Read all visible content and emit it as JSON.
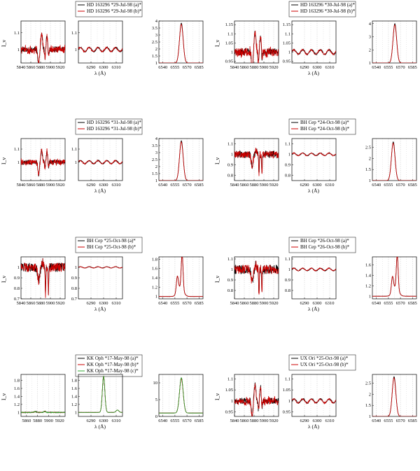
{
  "colors": {
    "a": "#000000",
    "b": "#cc0000",
    "c": "#33aa33",
    "grid": "#b8b8b8"
  },
  "chart_data": [
    {
      "type": "line",
      "title": "",
      "ylabel": "I_ν",
      "xlabel": "λ (Å)",
      "legend": [
        "HD 163296 *29-Jul-98 (a)*",
        "HD 163296 *29-Jul-98 (b)*"
      ],
      "panels": [
        {
          "xlim": [
            5840,
            5930
          ],
          "ylim": [
            0.92,
            1.17
          ],
          "xticks": [
            5840,
            5860,
            5880,
            5900,
            5920
          ],
          "yticks": [
            1,
            1.1
          ],
          "kind": "naD",
          "amp": 0.1
        },
        {
          "xlim": [
            6280,
            6315
          ],
          "ylim": [
            0.92,
            1.17
          ],
          "xticks": [
            6290,
            6300,
            6310
          ],
          "yticks": [
            1,
            1.1
          ],
          "kind": "wave",
          "amp": 0.02
        },
        {
          "xlim": [
            6535,
            6590
          ],
          "ylim": [
            1,
            4
          ],
          "xticks": [
            6540,
            6555,
            6570,
            6585
          ],
          "yticks": [
            1,
            1.5,
            2,
            2.5,
            3,
            3.5,
            4
          ],
          "kind": "ha",
          "peak": 3.85,
          "center": 6563
        }
      ]
    },
    {
      "type": "line",
      "title": "",
      "ylabel": "I_ν",
      "xlabel": "λ (Å)",
      "legend": [
        "HD 163296 *30-Jul-98 (a)*",
        "HD 163296 *30-Jul-98 (b)*"
      ],
      "panels": [
        {
          "xlim": [
            5840,
            5930
          ],
          "ylim": [
            0.94,
            1.17
          ],
          "xticks": [
            5840,
            5860,
            5880,
            5900,
            5920
          ],
          "yticks": [
            0.95,
            1,
            1.05,
            1.1,
            1.15
          ],
          "kind": "naD",
          "amp": 0.12
        },
        {
          "xlim": [
            6280,
            6315
          ],
          "ylim": [
            0.94,
            1.17
          ],
          "xticks": [
            6290,
            6300,
            6310
          ],
          "yticks": [
            0.95,
            1,
            1.05,
            1.1,
            1.15
          ],
          "kind": "wave",
          "amp": 0.02
        },
        {
          "xlim": [
            6535,
            6590
          ],
          "ylim": [
            1,
            4.2
          ],
          "xticks": [
            6540,
            6555,
            6570,
            6585
          ],
          "yticks": [
            1,
            2,
            3,
            4
          ],
          "kind": "ha",
          "peak": 4.0,
          "center": 6563
        }
      ]
    },
    {
      "type": "line",
      "title": "",
      "ylabel": "I_ν",
      "xlabel": "λ (Å)",
      "legend": [
        "HD 163296 *31-Jul-98 (a)*",
        "HD 163296 *31-Jul-98 (b)*"
      ],
      "panels": [
        {
          "xlim": [
            5840,
            5930
          ],
          "ylim": [
            0.86,
            1.18
          ],
          "xticks": [
            5840,
            5860,
            5880,
            5900,
            5920
          ],
          "yticks": [
            1,
            1.1
          ],
          "kind": "naD",
          "amp": 0.1
        },
        {
          "xlim": [
            6280,
            6315
          ],
          "ylim": [
            0.86,
            1.18
          ],
          "xticks": [
            6290,
            6300,
            6310
          ],
          "yticks": [
            1,
            1.1
          ],
          "kind": "wave",
          "amp": 0.02
        },
        {
          "xlim": [
            6535,
            6590
          ],
          "ylim": [
            1,
            4
          ],
          "xticks": [
            6540,
            6555,
            6570,
            6585
          ],
          "yticks": [
            1,
            1.5,
            2,
            2.5,
            3,
            3.5,
            4
          ],
          "kind": "ha",
          "peak": 3.85,
          "center": 6563
        }
      ]
    },
    {
      "type": "line",
      "title": "",
      "ylabel": "I_ν",
      "xlabel": "λ (Å)",
      "legend": [
        "BH Cep *24-Oct-98 (a)*",
        "BH Cep *24-Oct-98 (b)*"
      ],
      "panels": [
        {
          "xlim": [
            5840,
            5930
          ],
          "ylim": [
            0.75,
            1.15
          ],
          "xticks": [
            5840,
            5860,
            5880,
            5900,
            5920
          ],
          "yticks": [
            0.8,
            0.9,
            1,
            1.1
          ],
          "kind": "naDabs",
          "amp": 0.2
        },
        {
          "xlim": [
            6280,
            6315
          ],
          "ylim": [
            0.75,
            1.15
          ],
          "xticks": [
            6290,
            6300,
            6310
          ],
          "yticks": [
            0.8,
            0.9,
            1,
            1.1
          ],
          "kind": "wave",
          "amp": 0.02
        },
        {
          "xlim": [
            6535,
            6590
          ],
          "ylim": [
            1,
            2.9
          ],
          "xticks": [
            6540,
            6555,
            6570,
            6585
          ],
          "yticks": [
            1,
            1.5,
            2,
            2.5
          ],
          "kind": "ha",
          "peak": 2.75,
          "center": 6561
        }
      ]
    },
    {
      "type": "line",
      "title": "",
      "ylabel": "I_ν",
      "xlabel": "λ (Å)",
      "legend": [
        "BH Cep *25-Oct-98 (a)*",
        "BH Cep *25-Oct-98 (b)*"
      ],
      "panels": [
        {
          "xlim": [
            5840,
            5930
          ],
          "ylim": [
            0.7,
            1.1
          ],
          "xticks": [
            5840,
            5860,
            5880,
            5900,
            5920
          ],
          "yticks": [
            0.7,
            0.8,
            0.9,
            1
          ],
          "kind": "naDabs",
          "amp": 0.25
        },
        {
          "xlim": [
            6280,
            6315
          ],
          "ylim": [
            0.7,
            1.1
          ],
          "xticks": [
            6290,
            6300,
            6310
          ],
          "yticks": [
            0.7,
            0.8,
            0.9,
            1
          ],
          "kind": "wave",
          "amp": 0.01
        },
        {
          "xlim": [
            6535,
            6590
          ],
          "ylim": [
            0.95,
            1.85
          ],
          "xticks": [
            6540,
            6555,
            6570,
            6585
          ],
          "yticks": [
            1,
            1.2,
            1.4,
            1.6,
            1.8
          ],
          "kind": "ha2",
          "peak": 1.75,
          "center": 6562
        }
      ]
    },
    {
      "type": "line",
      "title": "",
      "ylabel": "I_ν",
      "xlabel": "λ (Å)",
      "legend": [
        "BH Cep *26-Oct-98 (a)*",
        "BH Cep *26-Oct-98 (b)*"
      ],
      "panels": [
        {
          "xlim": [
            5840,
            5930
          ],
          "ylim": [
            0.72,
            1.12
          ],
          "xticks": [
            5840,
            5860,
            5880,
            5900,
            5920
          ],
          "yticks": [
            0.8,
            0.9,
            1,
            1.1
          ],
          "kind": "naDabs",
          "amp": 0.25
        },
        {
          "xlim": [
            6280,
            6315
          ],
          "ylim": [
            0.72,
            1.12
          ],
          "xticks": [
            6290,
            6300,
            6310
          ],
          "yticks": [
            0.8,
            0.9,
            1,
            1.1
          ],
          "kind": "wave",
          "amp": 0.02
        },
        {
          "xlim": [
            6535,
            6590
          ],
          "ylim": [
            0.95,
            1.75
          ],
          "xticks": [
            6540,
            6555,
            6570,
            6585
          ],
          "yticks": [
            1,
            1.2,
            1.4,
            1.6
          ],
          "kind": "ha2",
          "peak": 1.65,
          "center": 6564
        }
      ]
    },
    {
      "type": "line",
      "title": "",
      "ylabel": "I_ν",
      "xlabel": "λ (Å)",
      "legend": [
        "KK Oph *17-May-98 (a)*",
        "KK Oph *17-May-98 (b)*",
        "KK Oph *17-May-98 (c)*"
      ],
      "panels": [
        {
          "xlim": [
            5850,
            5930
          ],
          "ylim": [
            0.9,
            1.95
          ],
          "xticks": [
            5860,
            5880,
            5900,
            5920
          ],
          "yticks": [
            1,
            1.2,
            1.4,
            1.6,
            1.8
          ],
          "kind": "flat",
          "amp": 0.05
        },
        {
          "xlim": [
            6280,
            6315
          ],
          "ylim": [
            0.9,
            1.95
          ],
          "xticks": [
            6290,
            6300,
            6310
          ],
          "yticks": [
            1,
            1.2,
            1.4,
            1.6,
            1.8
          ],
          "kind": "oi",
          "peak": 1.9,
          "center": 6300
        },
        {
          "xlim": [
            6535,
            6590
          ],
          "ylim": [
            0,
            12.5
          ],
          "xticks": [
            6540,
            6555,
            6570,
            6585
          ],
          "yticks": [
            0,
            5,
            10
          ],
          "kind": "ha",
          "peak": 11.5,
          "center": 6563,
          "base": 1
        }
      ]
    },
    {
      "type": "line",
      "title": "",
      "ylabel": "I_ν",
      "xlabel": "λ (Å)",
      "legend": [
        "UX Ori *25-Oct-98 (a)*",
        "UX Ori *25-Oct-98 (b)*"
      ],
      "panels": [
        {
          "xlim": [
            5840,
            5930
          ],
          "ylim": [
            0.93,
            1.12
          ],
          "xticks": [
            5840,
            5860,
            5880,
            5900,
            5920
          ],
          "yticks": [
            0.95,
            1,
            1.05,
            1.1
          ],
          "kind": "naD",
          "amp": 0.08
        },
        {
          "xlim": [
            6280,
            6315
          ],
          "ylim": [
            0.93,
            1.12
          ],
          "xticks": [
            6290,
            6300,
            6310
          ],
          "yticks": [
            0.95,
            1,
            1.05,
            1.1
          ],
          "kind": "wave",
          "amp": 0.015
        },
        {
          "xlim": [
            6535,
            6590
          ],
          "ylim": [
            1,
            2.9
          ],
          "xticks": [
            6540,
            6555,
            6570,
            6585
          ],
          "yticks": [
            1,
            1.5,
            2,
            2.5
          ],
          "kind": "ha",
          "peak": 2.8,
          "center": 6562
        }
      ]
    }
  ]
}
